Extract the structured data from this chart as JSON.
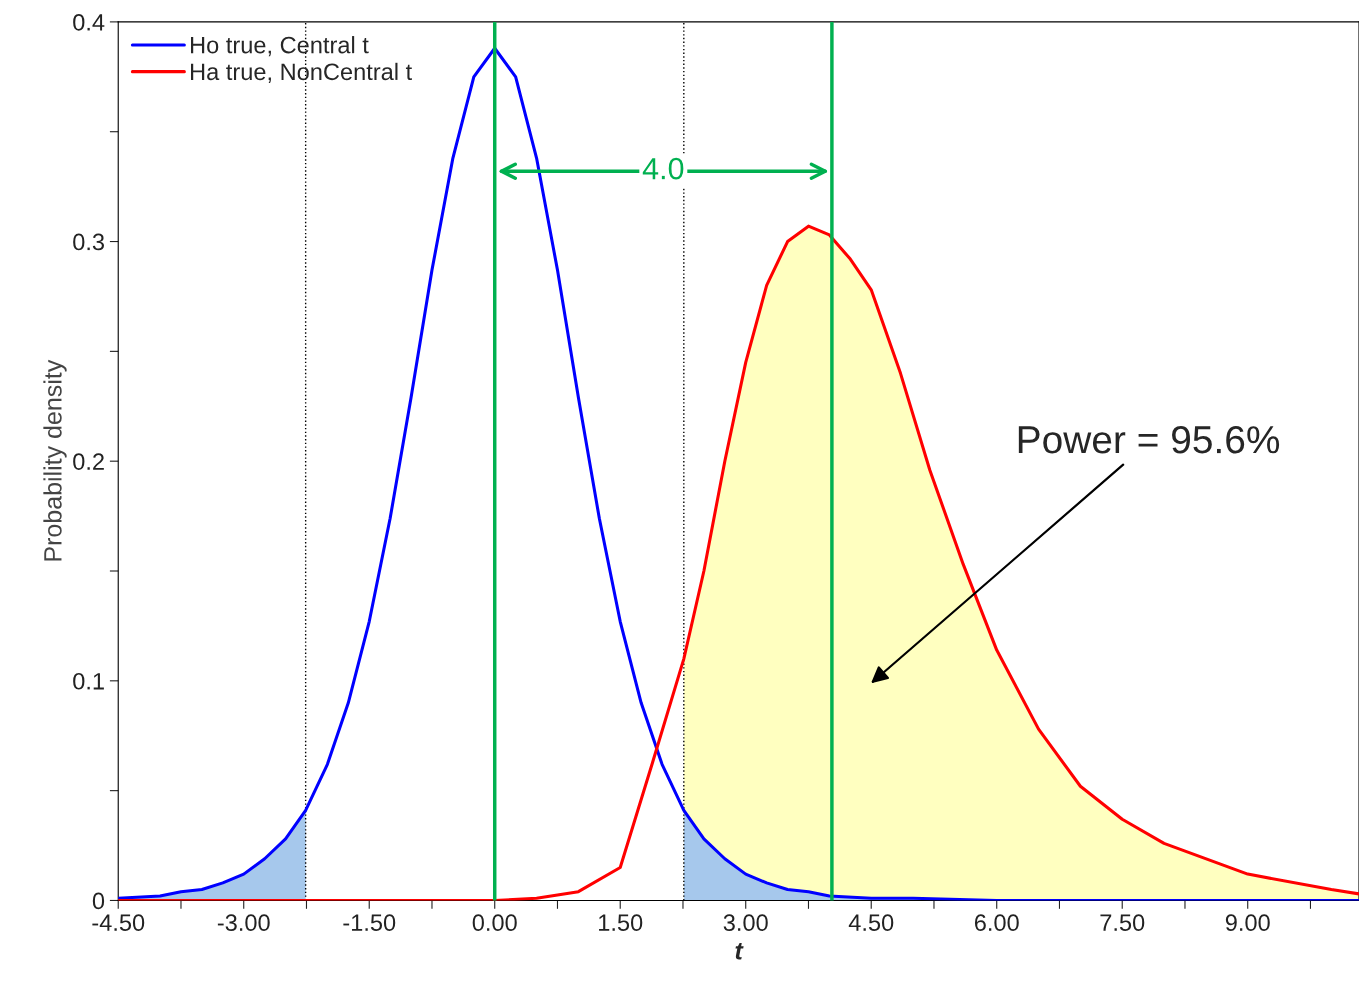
{
  "chart_data": {
    "type": "line",
    "xlabel": "t",
    "ylabel": "Probability density",
    "xlim": [
      -4.5,
      10.33
    ],
    "ylim": [
      0,
      0.4
    ],
    "xticks": [
      {
        "value": -4.5,
        "label": "-4.50"
      },
      {
        "value": -3.75,
        "label": null
      },
      {
        "value": -3.0,
        "label": "-3.00"
      },
      {
        "value": -2.25,
        "label": null
      },
      {
        "value": -1.5,
        "label": "-1.50"
      },
      {
        "value": -0.75,
        "label": null
      },
      {
        "value": 0,
        "label": "0.00"
      },
      {
        "value": 0.75,
        "label": null
      },
      {
        "value": 1.5,
        "label": "1.50"
      },
      {
        "value": 2.25,
        "label": null
      },
      {
        "value": 3.0,
        "label": "3.00"
      },
      {
        "value": 3.75,
        "label": null
      },
      {
        "value": 4.5,
        "label": "4.50"
      },
      {
        "value": 5.25,
        "label": null
      },
      {
        "value": 6.0,
        "label": "6.00"
      },
      {
        "value": 6.75,
        "label": null
      },
      {
        "value": 7.5,
        "label": "7.50"
      },
      {
        "value": 8.25,
        "label": null
      },
      {
        "value": 9.0,
        "label": "9.00"
      },
      {
        "value": 9.75,
        "label": null
      }
    ],
    "yticks": [
      0,
      {
        "value": 0.05,
        "label": null
      },
      0.1,
      {
        "value": 0.15,
        "label": null
      },
      0.2,
      {
        "value": 0.25,
        "label": null
      },
      0.3,
      {
        "value": 0.35,
        "label": null
      },
      0.4
    ],
    "grid": false,
    "legend": "top left",
    "marker": "none",
    "line_style": "solid",
    "series": [
      {
        "type": "area",
        "color": "#a6c8ec",
        "x": [
          -4.5,
          -4,
          -3.75,
          -3.5,
          -3.25,
          -3,
          -2.75,
          -2.5,
          -2.26
        ],
        "values": [
          0.001,
          0.002,
          0.004,
          0.005,
          0.008,
          0.012,
          0.019,
          0.028,
          0.041
        ]
      },
      {
        "type": "area",
        "color": "#ffffc0",
        "x": [
          2.26,
          2.5,
          2.75,
          3,
          3.25,
          3.5,
          3.75,
          4,
          4.25,
          4.5,
          4.85,
          5.2,
          5.6,
          6,
          6.5,
          7,
          7.5,
          8,
          9,
          10,
          10.33
        ],
        "values": [
          0.11,
          0.15,
          0.2,
          0.245,
          0.28,
          0.3,
          0.307,
          0.303,
          0.292,
          0.278,
          0.24,
          0.196,
          0.153,
          0.114,
          0.078,
          0.052,
          0.037,
          0.026,
          0.012,
          0.005,
          0.003
        ]
      },
      {
        "type": "area",
        "color": "#a6c8ec",
        "x": [
          2.26,
          2.5,
          2.75,
          3,
          3.25,
          3.5,
          3.75,
          4,
          4.5,
          5,
          6,
          10.33
        ],
        "values": [
          0.041,
          0.028,
          0.019,
          0.012,
          0.008,
          0.005,
          0.004,
          0.002,
          0.001,
          0.001,
          0,
          0
        ]
      },
      {
        "name": "Ho true, Central t",
        "color": "#0000ff",
        "x": [
          -4.5,
          -4,
          -3.75,
          -3.5,
          -3.25,
          -3,
          -2.75,
          -2.5,
          -2.26,
          -2,
          -1.75,
          -1.5,
          -1.25,
          -1,
          -0.75,
          -0.5,
          -0.25,
          0,
          0.25,
          0.5,
          0.75,
          1,
          1.25,
          1.5,
          1.75,
          2,
          2.26,
          2.5,
          2.75,
          3,
          3.25,
          3.5,
          3.75,
          4,
          4.5,
          5,
          6,
          8,
          10.33
        ],
        "values": [
          0.001,
          0.002,
          0.004,
          0.005,
          0.008,
          0.012,
          0.019,
          0.028,
          0.041,
          0.062,
          0.09,
          0.127,
          0.174,
          0.229,
          0.287,
          0.338,
          0.375,
          0.388,
          0.375,
          0.338,
          0.287,
          0.229,
          0.174,
          0.127,
          0.09,
          0.062,
          0.041,
          0.028,
          0.019,
          0.012,
          0.008,
          0.005,
          0.004,
          0.002,
          0.001,
          0.001,
          0,
          0,
          0
        ]
      },
      {
        "name": "Ha true, NonCentral t",
        "color": "#ff0000",
        "x": [
          -4.5,
          -1,
          0,
          0.5,
          1,
          1.5,
          1.88,
          2.26,
          2.5,
          2.75,
          3,
          3.25,
          3.5,
          3.75,
          4,
          4.25,
          4.5,
          4.85,
          5.2,
          5.6,
          6,
          6.5,
          7,
          7.5,
          8,
          9,
          10,
          10.33
        ],
        "values": [
          0,
          0,
          0,
          0.001,
          0.004,
          0.015,
          0.062,
          0.11,
          0.15,
          0.2,
          0.245,
          0.28,
          0.3,
          0.307,
          0.303,
          0.292,
          0.278,
          0.24,
          0.196,
          0.153,
          0.114,
          0.078,
          0.052,
          0.037,
          0.026,
          0.012,
          0.005,
          0.003
        ]
      }
    ],
    "ref_lines": [
      {
        "axis": "x",
        "value": -2.26,
        "color": "#000000",
        "line_style": "dotted"
      },
      {
        "axis": "x",
        "value": 2.26,
        "color": "#000000",
        "line_style": "dotted"
      },
      {
        "axis": "x",
        "value": 0,
        "color": "#00b050",
        "line_style": "solid"
      },
      {
        "axis": "x",
        "value": 4.03,
        "color": "#00b050",
        "line_style": "solid"
      }
    ],
    "annotations": [
      "4.0",
      "Power = 95.6%"
    ]
  }
}
